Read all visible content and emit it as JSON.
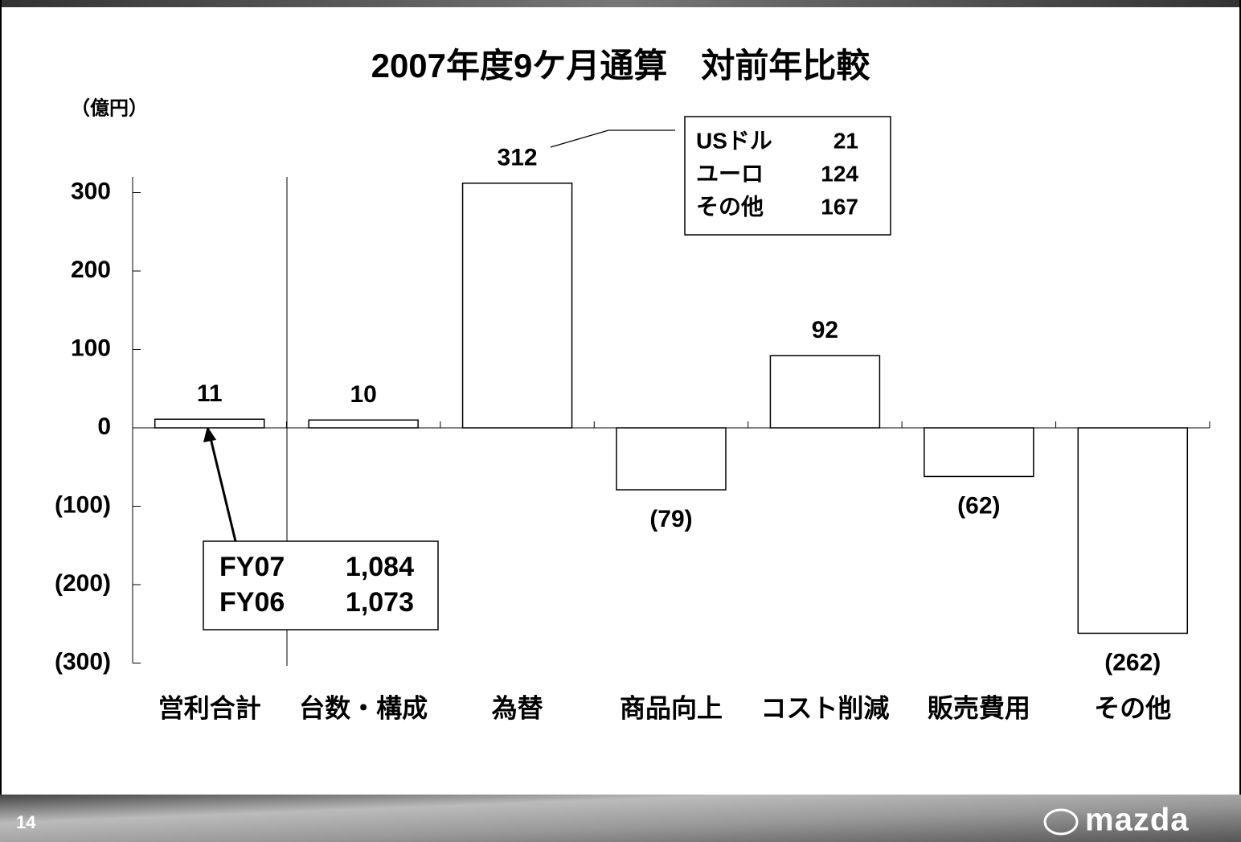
{
  "chart_data": {
    "type": "bar",
    "title": "2007年度9ケ月通算　対前年比較",
    "y_axis_label": "（億円）",
    "categories": [
      "営利合計",
      "台数・構成",
      "為替",
      "商品向上",
      "コスト削減",
      "販売費用",
      "その他"
    ],
    "values": [
      11,
      10,
      312,
      -79,
      92,
      -62,
      -262
    ],
    "value_labels": [
      "11",
      "10",
      "312",
      "(79)",
      "92",
      "(62)",
      "(262)"
    ],
    "color": "#ffffff",
    "ylim": [
      -300,
      320
    ],
    "yticks": [
      300,
      200,
      100,
      0,
      {
        "value": -100,
        "label": "(100)"
      },
      {
        "value": -200,
        "label": "(200)"
      },
      {
        "value": -300,
        "label": "(300)"
      }
    ],
    "grid": false,
    "callouts": [
      {
        "rows": [
          {
            "label": "USドル",
            "value": 21
          },
          {
            "label": "ユーロ",
            "value": 124
          },
          {
            "label": "その他",
            "value": 167
          }
        ]
      },
      {
        "rows": [
          {
            "label": "FY07",
            "value": "1,084"
          },
          {
            "label": "FY06",
            "value": "1,073"
          }
        ]
      }
    ]
  },
  "footer": {
    "page_number": "14",
    "logo": "mazda"
  }
}
